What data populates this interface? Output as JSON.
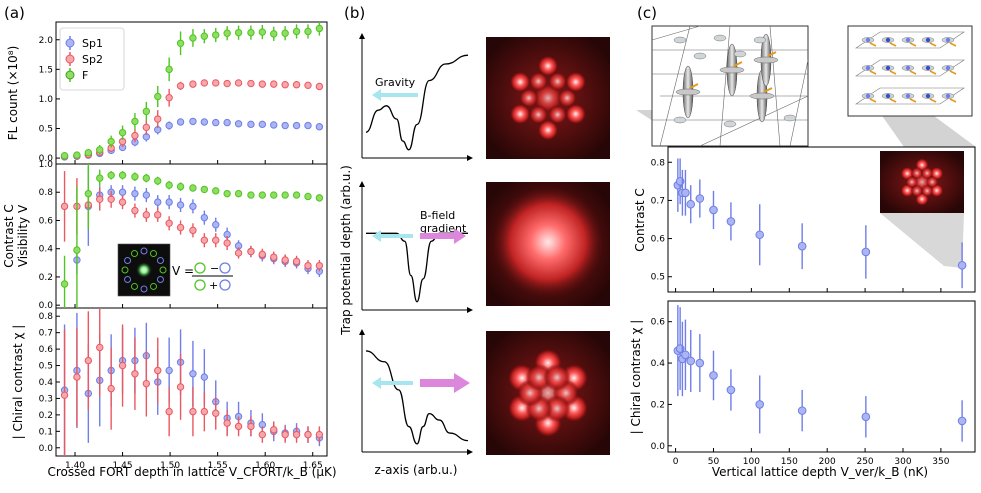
{
  "panel_labels": {
    "a": "(a)",
    "b": "(b)",
    "c": "(c)"
  },
  "colors": {
    "Sp1": "#6f7ee8",
    "Sp2": "#ea5860",
    "F": "#4fc522",
    "cyan": "#a7e6ee",
    "magenta": "#dc86dc"
  },
  "panel_a": {
    "xlabel": "Crossed FORT depth in lattice V_CFORT/k_B (μK)",
    "x_ticks": [
      "1.40",
      "1.45",
      "1.50",
      "1.55",
      "1.60",
      "1.65"
    ],
    "legend": [
      "Sp1",
      "Sp2",
      "F"
    ],
    "top_ylabel": "FL count (×10⁸)",
    "mid_ylabel_line1": "Contrast C",
    "mid_ylabel_line2": "Visibility V",
    "bot_ylabel": "| Chiral contrast χ |",
    "visibility_formula": {
      "lhs": "V =",
      "num": "○ − ○",
      "den": "○ + ○"
    }
  },
  "panel_b": {
    "ylabel": "Trap potential depth (arb.u.)",
    "xlabel": "z-axis (arb.u.)",
    "gravity_label": "Gravity",
    "bfield_label_line1": "B-field",
    "bfield_label_line2": "gradient"
  },
  "panel_c": {
    "top_ylabel": "Contrast C",
    "bot_ylabel": "| Chiral contrast χ |",
    "xlabel": "Vertical lattice depth V_ver/k_B (nK)",
    "x_ticks": [
      "0",
      "50",
      "100",
      "150",
      "200",
      "250",
      "300",
      "350"
    ]
  },
  "chart_data": [
    {
      "id": "a_top",
      "type": "scatter",
      "title": "",
      "xlabel": "Crossed FORT depth in lattice V_CFORT/k_B (μK)",
      "ylabel": "FL count (×10⁸)",
      "xlim": [
        1.38,
        1.665
      ],
      "ylim": [
        -0.1,
        2.3
      ],
      "yticks": [
        0.0,
        0.5,
        1.0,
        1.5,
        2.0
      ],
      "ytick_labels": [
        "0.0",
        "0.5",
        "1.0",
        "1.5",
        "2.0"
      ],
      "x": [
        1.389,
        1.402,
        1.414,
        1.426,
        1.438,
        1.45,
        1.463,
        1.475,
        1.487,
        1.499,
        1.511,
        1.524,
        1.536,
        1.548,
        1.56,
        1.572,
        1.585,
        1.597,
        1.609,
        1.621,
        1.633,
        1.645,
        1.657
      ],
      "series": [
        {
          "name": "Sp1",
          "values": [
            0.02,
            0.03,
            0.05,
            0.08,
            0.13,
            0.18,
            0.27,
            0.36,
            0.48,
            0.55,
            0.61,
            0.62,
            0.61,
            0.6,
            0.6,
            0.58,
            0.57,
            0.57,
            0.56,
            0.55,
            0.55,
            0.55,
            0.53
          ],
          "errors": [
            0.02,
            0.02,
            0.03,
            0.04,
            0.05,
            0.06,
            0.07,
            0.08,
            0.08,
            0.07,
            0.05,
            0.04,
            0.04,
            0.04,
            0.04,
            0.04,
            0.04,
            0.04,
            0.04,
            0.04,
            0.04,
            0.04,
            0.04
          ]
        },
        {
          "name": "Sp2",
          "values": [
            0.03,
            0.04,
            0.06,
            0.1,
            0.17,
            0.28,
            0.38,
            0.52,
            0.66,
            1.02,
            1.22,
            1.25,
            1.27,
            1.27,
            1.26,
            1.27,
            1.26,
            1.25,
            1.25,
            1.24,
            1.24,
            1.23,
            1.21
          ],
          "errors": [
            0.02,
            0.02,
            0.03,
            0.05,
            0.07,
            0.09,
            0.11,
            0.13,
            0.15,
            0.15,
            0.07,
            0.05,
            0.05,
            0.05,
            0.05,
            0.05,
            0.05,
            0.05,
            0.05,
            0.05,
            0.05,
            0.05,
            0.05
          ]
        },
        {
          "name": "F",
          "values": [
            0.04,
            0.05,
            0.09,
            0.14,
            0.28,
            0.43,
            0.62,
            0.79,
            1.04,
            1.5,
            1.94,
            2.03,
            2.06,
            2.08,
            2.11,
            2.12,
            2.12,
            2.13,
            2.1,
            2.11,
            2.14,
            2.14,
            2.19
          ],
          "errors": [
            0.03,
            0.04,
            0.05,
            0.08,
            0.1,
            0.12,
            0.14,
            0.16,
            0.18,
            0.2,
            0.2,
            0.15,
            0.12,
            0.12,
            0.12,
            0.12,
            0.12,
            0.12,
            0.12,
            0.12,
            0.12,
            0.12,
            0.12
          ]
        }
      ]
    },
    {
      "id": "a_mid",
      "type": "scatter",
      "title": "",
      "xlabel": "",
      "ylabel": "Contrast C / Visibility V",
      "xlim": [
        1.38,
        1.665
      ],
      "ylim": [
        -0.02,
        1.0
      ],
      "yticks": [
        0.0,
        0.2,
        0.4,
        0.6,
        0.8,
        1.0
      ],
      "ytick_labels": [
        "0.0",
        "0.2",
        "0.4",
        "0.6",
        "0.8",
        "1.0"
      ],
      "x": [
        1.389,
        1.402,
        1.414,
        1.426,
        1.438,
        1.45,
        1.463,
        1.475,
        1.487,
        1.499,
        1.511,
        1.524,
        1.536,
        1.548,
        1.56,
        1.572,
        1.585,
        1.597,
        1.609,
        1.621,
        1.633,
        1.645,
        1.657
      ],
      "series": [
        {
          "name": "Sp1",
          "values": [
            null,
            0.32,
            0.7,
            0.78,
            0.8,
            0.8,
            0.79,
            0.78,
            0.73,
            0.73,
            0.71,
            0.7,
            0.62,
            0.57,
            0.5,
            0.42,
            0.38,
            0.35,
            0.33,
            0.31,
            0.3,
            0.26,
            0.24
          ],
          "errors": [
            null,
            0.1,
            0.28,
            0.06,
            0.05,
            0.05,
            0.05,
            0.05,
            0.05,
            0.05,
            0.05,
            0.05,
            0.05,
            0.05,
            0.05,
            0.04,
            0.04,
            0.04,
            0.04,
            0.04,
            0.04,
            0.04,
            0.04
          ]
        },
        {
          "name": "Sp2",
          "values": [
            0.7,
            0.7,
            0.71,
            0.75,
            0.75,
            0.73,
            0.67,
            0.64,
            0.64,
            0.58,
            0.55,
            0.53,
            0.46,
            0.46,
            0.44,
            0.37,
            0.38,
            0.36,
            0.34,
            0.32,
            0.31,
            0.28,
            0.28
          ],
          "errors": [
            0.25,
            0.2,
            0.12,
            0.08,
            0.06,
            0.05,
            0.05,
            0.05,
            0.05,
            0.05,
            0.05,
            0.05,
            0.05,
            0.05,
            0.05,
            0.04,
            0.04,
            0.04,
            0.04,
            0.04,
            0.04,
            0.04,
            0.04
          ]
        },
        {
          "name": "F",
          "values": [
            0.15,
            0.39,
            0.79,
            0.9,
            0.92,
            0.92,
            0.91,
            0.9,
            0.88,
            0.85,
            0.84,
            0.83,
            0.82,
            0.81,
            0.79,
            0.79,
            0.78,
            0.78,
            0.78,
            0.78,
            0.78,
            0.77,
            0.76
          ],
          "errors": [
            0.2,
            0.45,
            0.25,
            0.06,
            0.03,
            0.03,
            0.03,
            0.03,
            0.03,
            0.03,
            0.03,
            0.02,
            0.02,
            0.02,
            0.02,
            0.02,
            0.02,
            0.02,
            0.02,
            0.02,
            0.02,
            0.02,
            0.02
          ]
        }
      ]
    },
    {
      "id": "a_bot",
      "type": "scatter",
      "title": "",
      "xlabel": "Crossed FORT depth in lattice V_CFORT/k_B (μK)",
      "ylabel": "| Chiral contrast χ |",
      "xlim": [
        1.38,
        1.665
      ],
      "ylim": [
        -0.05,
        0.85
      ],
      "yticks": [
        0.0,
        0.1,
        0.2,
        0.3,
        0.4,
        0.5,
        0.6,
        0.7,
        0.8
      ],
      "ytick_labels": [
        "0.0",
        "0.1",
        "0.2",
        "0.3",
        "0.4",
        "0.5",
        "0.6",
        "0.7",
        "0.8"
      ],
      "x": [
        1.389,
        1.402,
        1.414,
        1.426,
        1.438,
        1.45,
        1.463,
        1.475,
        1.487,
        1.499,
        1.511,
        1.524,
        1.536,
        1.548,
        1.56,
        1.572,
        1.585,
        1.597,
        1.609,
        1.621,
        1.633,
        1.645,
        1.657
      ],
      "series": [
        {
          "name": "Sp1",
          "values": [
            0.35,
            0.47,
            0.33,
            0.41,
            0.47,
            0.53,
            0.53,
            0.56,
            0.4,
            0.47,
            0.52,
            0.45,
            0.43,
            0.28,
            0.18,
            0.19,
            0.15,
            0.14,
            0.1,
            0.09,
            0.1,
            0.08,
            0.06
          ],
          "errors": [
            0.4,
            0.35,
            0.3,
            0.28,
            0.22,
            0.2,
            0.2,
            0.2,
            0.2,
            0.2,
            0.2,
            0.2,
            0.17,
            0.13,
            0.1,
            0.09,
            0.08,
            0.07,
            0.06,
            0.05,
            0.05,
            0.05,
            0.05
          ]
        },
        {
          "name": "Sp2",
          "values": [
            0.32,
            0.43,
            0.53,
            0.61,
            0.36,
            0.5,
            0.45,
            0.39,
            0.47,
            0.22,
            0.37,
            0.22,
            0.22,
            0.21,
            0.15,
            0.13,
            0.13,
            0.08,
            0.11,
            0.08,
            0.08,
            0.08,
            0.08
          ],
          "errors": [
            0.4,
            0.3,
            0.3,
            0.3,
            0.25,
            0.25,
            0.22,
            0.2,
            0.2,
            0.15,
            0.2,
            0.15,
            0.12,
            0.1,
            0.08,
            0.06,
            0.06,
            0.05,
            0.05,
            0.05,
            0.05,
            0.05,
            0.05
          ]
        }
      ]
    },
    {
      "id": "c_top",
      "type": "scatter",
      "title": "",
      "xlabel": "",
      "ylabel": "Contrast C",
      "xlim": [
        -10,
        395
      ],
      "ylim": [
        0.46,
        0.84
      ],
      "yticks": [
        0.5,
        0.6,
        0.7,
        0.8
      ],
      "ytick_labels": [
        "0.5",
        "0.6",
        "0.7",
        "0.8"
      ],
      "x": [
        3,
        6,
        9,
        13,
        20,
        32,
        50,
        73,
        111,
        167,
        251,
        378
      ],
      "series": [
        {
          "name": "Sp1",
          "values": [
            0.74,
            0.75,
            0.72,
            0.72,
            0.69,
            0.705,
            0.675,
            0.645,
            0.61,
            0.58,
            0.565,
            0.53
          ],
          "errors": [
            0.07,
            0.06,
            0.06,
            0.06,
            0.05,
            0.05,
            0.05,
            0.05,
            0.08,
            0.06,
            0.07,
            0.06
          ]
        }
      ]
    },
    {
      "id": "c_bot",
      "type": "scatter",
      "title": "",
      "xlabel": "Vertical lattice depth V_ver/k_B (nK)",
      "ylabel": "| Chiral contrast χ |",
      "xlim": [
        -10,
        395
      ],
      "ylim": [
        -0.03,
        0.7
      ],
      "xticks": [
        0,
        50,
        100,
        150,
        200,
        250,
        300,
        350
      ],
      "yticks": [
        0.0,
        0.2,
        0.4,
        0.6
      ],
      "ytick_labels": [
        "0.0",
        "0.2",
        "0.4",
        "0.6"
      ],
      "x": [
        3,
        6,
        9,
        13,
        20,
        32,
        50,
        73,
        111,
        167,
        251,
        378
      ],
      "series": [
        {
          "name": "Sp1",
          "values": [
            0.46,
            0.47,
            0.42,
            0.44,
            0.41,
            0.4,
            0.34,
            0.27,
            0.2,
            0.17,
            0.14,
            0.12
          ],
          "errors": [
            0.22,
            0.2,
            0.18,
            0.17,
            0.15,
            0.14,
            0.12,
            0.1,
            0.14,
            0.1,
            0.1,
            0.1
          ]
        }
      ]
    },
    {
      "id": "b_potentials",
      "type": "line",
      "title": "",
      "xlabel": "z-axis (arb.u.)",
      "ylabel": "Trap potential depth (arb.u.)",
      "xlim": [
        0,
        1
      ],
      "ylim": [
        0,
        1
      ],
      "series": [
        {
          "name": "gravity",
          "x": [
            0,
            0.12,
            0.2,
            0.3,
            0.36,
            0.42,
            0.5,
            0.62,
            0.78,
            1.0
          ],
          "y": [
            0.18,
            0.38,
            0.42,
            0.3,
            0.1,
            0.02,
            0.25,
            0.65,
            0.8,
            0.88
          ]
        },
        {
          "name": "bfield",
          "x": [
            0,
            0.3,
            0.38,
            0.44,
            0.5,
            0.56,
            0.64,
            0.72,
            1.0
          ],
          "y": [
            0.62,
            0.62,
            0.55,
            0.25,
            0.02,
            0.22,
            0.55,
            0.62,
            0.62
          ]
        },
        {
          "name": "combined",
          "x": [
            0,
            0.18,
            0.32,
            0.42,
            0.5,
            0.56,
            0.62,
            0.72,
            0.82,
            1.0
          ],
          "y": [
            0.88,
            0.78,
            0.52,
            0.18,
            0.02,
            0.18,
            0.3,
            0.24,
            0.12,
            0.05
          ]
        }
      ]
    }
  ]
}
